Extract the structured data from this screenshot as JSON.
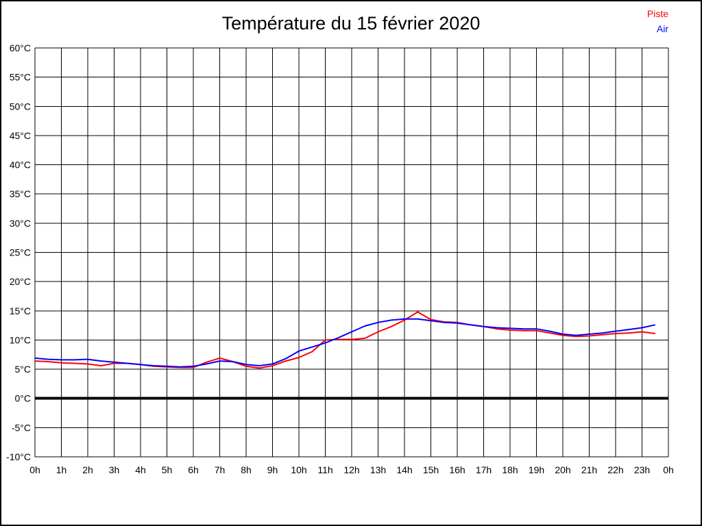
{
  "chart_data": {
    "type": "line",
    "title": "Température du 15 février 2020",
    "xlabel": "",
    "ylabel": "",
    "xlim": [
      0,
      24
    ],
    "ylim": [
      -10,
      60
    ],
    "grid": {
      "on": true,
      "color": "#000000"
    },
    "zero_line": {
      "value": 0,
      "color": "#000000",
      "width": 4
    },
    "legend_position": "top-right",
    "xtick_values": [
      0,
      1,
      2,
      3,
      4,
      5,
      6,
      7,
      8,
      9,
      10,
      11,
      12,
      13,
      14,
      15,
      16,
      17,
      18,
      19,
      20,
      21,
      22,
      23,
      24
    ],
    "xtick_labels": [
      "0h",
      "1h",
      "2h",
      "3h",
      "4h",
      "5h",
      "6h",
      "7h",
      "8h",
      "9h",
      "10h",
      "11h",
      "12h",
      "13h",
      "14h",
      "15h",
      "16h",
      "17h",
      "18h",
      "19h",
      "20h",
      "21h",
      "22h",
      "23h",
      "0h"
    ],
    "ytick_values": [
      60,
      55,
      50,
      45,
      40,
      35,
      30,
      25,
      20,
      15,
      10,
      5,
      0,
      -5,
      -10
    ],
    "ytick_labels": [
      "60°C",
      "55°C",
      "50°C",
      "45°C",
      "40°C",
      "35°C",
      "30°C",
      "25°C",
      "20°C",
      "15°C",
      "10°C",
      "5°C",
      "0°C",
      "-5°C",
      "-10°C"
    ],
    "x": [
      0,
      0.5,
      1,
      1.5,
      2,
      2.5,
      3,
      3.5,
      4,
      4.5,
      5,
      5.5,
      6,
      6.5,
      7,
      7.5,
      8,
      8.5,
      9,
      9.5,
      10,
      10.5,
      11,
      11.5,
      12,
      12.5,
      13,
      13.5,
      14,
      14.5,
      15,
      15.5,
      16,
      16.5,
      17,
      17.5,
      18,
      18.5,
      19,
      19.5,
      20,
      20.5,
      21,
      21.5,
      22,
      22.5,
      23,
      23.5
    ],
    "series": [
      {
        "name": "Piste",
        "color": "#ff0000",
        "values": [
          6.4,
          6.3,
          6.1,
          6.0,
          5.9,
          5.6,
          6.0,
          6.0,
          5.8,
          5.5,
          5.4,
          5.3,
          5.3,
          6.2,
          6.9,
          6.3,
          5.5,
          5.2,
          5.6,
          6.4,
          7.0,
          8.0,
          10.0,
          10.1,
          10.1,
          10.3,
          11.4,
          12.3,
          13.4,
          14.8,
          13.5,
          13.1,
          13.0,
          12.6,
          12.3,
          11.9,
          11.7,
          11.6,
          11.6,
          11.2,
          10.8,
          10.6,
          10.7,
          10.9,
          11.1,
          11.2,
          11.4,
          11.1
        ]
      },
      {
        "name": "Air",
        "color": "#0000ff",
        "values": [
          6.9,
          6.7,
          6.6,
          6.6,
          6.7,
          6.4,
          6.2,
          6.0,
          5.8,
          5.6,
          5.5,
          5.4,
          5.5,
          5.9,
          6.4,
          6.3,
          5.8,
          5.6,
          5.9,
          6.8,
          8.1,
          8.8,
          9.5,
          10.4,
          11.4,
          12.4,
          13.0,
          13.4,
          13.6,
          13.6,
          13.3,
          13.0,
          12.9,
          12.6,
          12.3,
          12.1,
          12.0,
          11.9,
          11.9,
          11.5,
          11.0,
          10.8,
          11.0,
          11.2,
          11.5,
          11.8,
          12.1,
          12.6
        ]
      }
    ]
  }
}
